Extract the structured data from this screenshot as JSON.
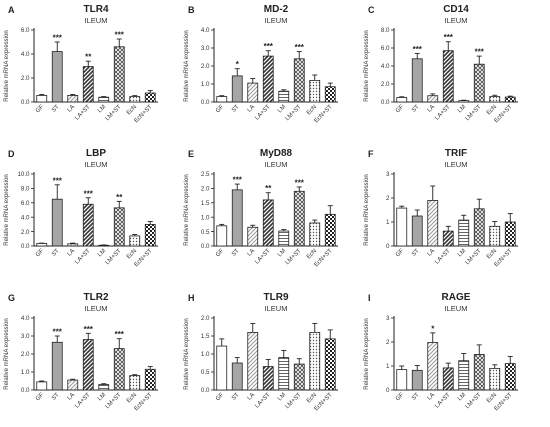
{
  "figure": {
    "ylabel": "Relative mRNA expression",
    "subtitle": "ILEUM",
    "categories": [
      "GF",
      "ST",
      "LA",
      "LA+ST",
      "LM",
      "LM+ST",
      "EcN",
      "EcN+ST"
    ],
    "pattern_names": [
      "white",
      "gray",
      "diagonal-light",
      "diagonal-dark",
      "horizontal-lines",
      "crosshatch",
      "dots-light",
      "checker-dark"
    ]
  },
  "chart_data": [
    {
      "type": "bar",
      "panel": "A",
      "title": "TLR4",
      "ylim": [
        0,
        6
      ],
      "ticks": [
        "0.0",
        "2.0",
        "4.0",
        "6.0"
      ],
      "values": [
        0.55,
        4.2,
        0.55,
        2.95,
        0.4,
        4.6,
        0.45,
        0.75
      ],
      "errors": [
        0.08,
        0.8,
        0.08,
        0.45,
        0.05,
        0.65,
        0.08,
        0.2
      ],
      "annotations": [
        "",
        "***",
        "",
        "**",
        "",
        "***",
        "",
        ""
      ]
    },
    {
      "type": "bar",
      "panel": "B",
      "title": "MD-2",
      "ylim": [
        0,
        4
      ],
      "ticks": [
        "0.0",
        "1.0",
        "2.0",
        "3.0",
        "4.0"
      ],
      "values": [
        0.3,
        1.45,
        1.05,
        2.55,
        0.6,
        2.4,
        1.2,
        0.85
      ],
      "errors": [
        0.05,
        0.4,
        0.25,
        0.3,
        0.08,
        0.4,
        0.3,
        0.2
      ],
      "annotations": [
        "",
        "*",
        "",
        "***",
        "",
        "***",
        "",
        ""
      ]
    },
    {
      "type": "bar",
      "panel": "C",
      "title": "CD14",
      "ylim": [
        0,
        8
      ],
      "ticks": [
        "0.0",
        "2.0",
        "4.0",
        "6.0",
        "8.0"
      ],
      "values": [
        0.5,
        4.8,
        0.7,
        5.7,
        0.15,
        4.2,
        0.6,
        0.55
      ],
      "errors": [
        0.08,
        0.6,
        0.2,
        1.0,
        0.05,
        0.9,
        0.15,
        0.1
      ],
      "annotations": [
        "",
        "***",
        "",
        "***",
        "",
        "***",
        "",
        ""
      ]
    },
    {
      "type": "bar",
      "panel": "D",
      "title": "LBP",
      "ylim": [
        0,
        10
      ],
      "ticks": [
        "0.0",
        "2.0",
        "4.0",
        "6.0",
        "8.0",
        "10.0"
      ],
      "values": [
        0.35,
        6.5,
        0.3,
        5.8,
        0.1,
        5.3,
        1.4,
        3.0
      ],
      "errors": [
        0.05,
        2.0,
        0.1,
        0.9,
        0.05,
        0.9,
        0.2,
        0.4
      ],
      "annotations": [
        "",
        "***",
        "",
        "***",
        "",
        "**",
        "",
        ""
      ]
    },
    {
      "type": "bar",
      "panel": "E",
      "title": "MyD88",
      "ylim": [
        0,
        2.5
      ],
      "ticks": [
        "0.0",
        "0.5",
        "1.0",
        "1.5",
        "2.0",
        "2.5"
      ],
      "values": [
        0.7,
        1.95,
        0.65,
        1.6,
        0.52,
        1.9,
        0.8,
        1.1
      ],
      "errors": [
        0.05,
        0.2,
        0.07,
        0.25,
        0.05,
        0.15,
        0.1,
        0.3
      ],
      "annotations": [
        "",
        "***",
        "",
        "**",
        "",
        "***",
        "",
        ""
      ]
    },
    {
      "type": "bar",
      "panel": "F",
      "title": "TRIF",
      "ylim": [
        0,
        3
      ],
      "ticks": [
        "0",
        "1",
        "2",
        "3"
      ],
      "values": [
        1.58,
        1.25,
        1.9,
        0.62,
        1.08,
        1.55,
        0.82,
        1.0
      ],
      "errors": [
        0.08,
        0.25,
        0.6,
        0.2,
        0.2,
        0.4,
        0.2,
        0.35
      ],
      "annotations": [
        "",
        "",
        "",
        "",
        "",
        "",
        "",
        ""
      ]
    },
    {
      "type": "bar",
      "panel": "G",
      "title": "TLR2",
      "ylim": [
        0,
        4
      ],
      "ticks": [
        "0.0",
        "1.0",
        "2.0",
        "3.0",
        "4.0"
      ],
      "values": [
        0.45,
        2.65,
        0.55,
        2.8,
        0.3,
        2.3,
        0.8,
        1.15
      ],
      "errors": [
        0.05,
        0.35,
        0.05,
        0.35,
        0.05,
        0.55,
        0.05,
        0.15
      ],
      "annotations": [
        "",
        "***",
        "",
        "***",
        "",
        "***",
        "",
        ""
      ]
    },
    {
      "type": "bar",
      "panel": "H",
      "title": "TLR9",
      "ylim": [
        0,
        2
      ],
      "ticks": [
        "0.0",
        "0.5",
        "1.0",
        "1.5",
        "2.0"
      ],
      "values": [
        1.22,
        0.75,
        1.6,
        0.65,
        0.9,
        0.72,
        1.6,
        1.42
      ],
      "errors": [
        0.2,
        0.15,
        0.25,
        0.2,
        0.2,
        0.15,
        0.25,
        0.25
      ],
      "annotations": [
        "",
        "",
        "",
        "",
        "",
        "",
        "",
        ""
      ]
    },
    {
      "type": "bar",
      "panel": "I",
      "title": "RAGE",
      "ylim": [
        0,
        3
      ],
      "ticks": [
        "0",
        "1",
        "2",
        "3"
      ],
      "values": [
        0.85,
        0.82,
        1.98,
        0.92,
        1.22,
        1.48,
        0.9,
        1.1
      ],
      "errors": [
        0.15,
        0.2,
        0.4,
        0.2,
        0.3,
        0.4,
        0.15,
        0.3
      ],
      "annotations": [
        "",
        "",
        "*",
        "",
        "",
        "",
        "",
        ""
      ]
    }
  ]
}
